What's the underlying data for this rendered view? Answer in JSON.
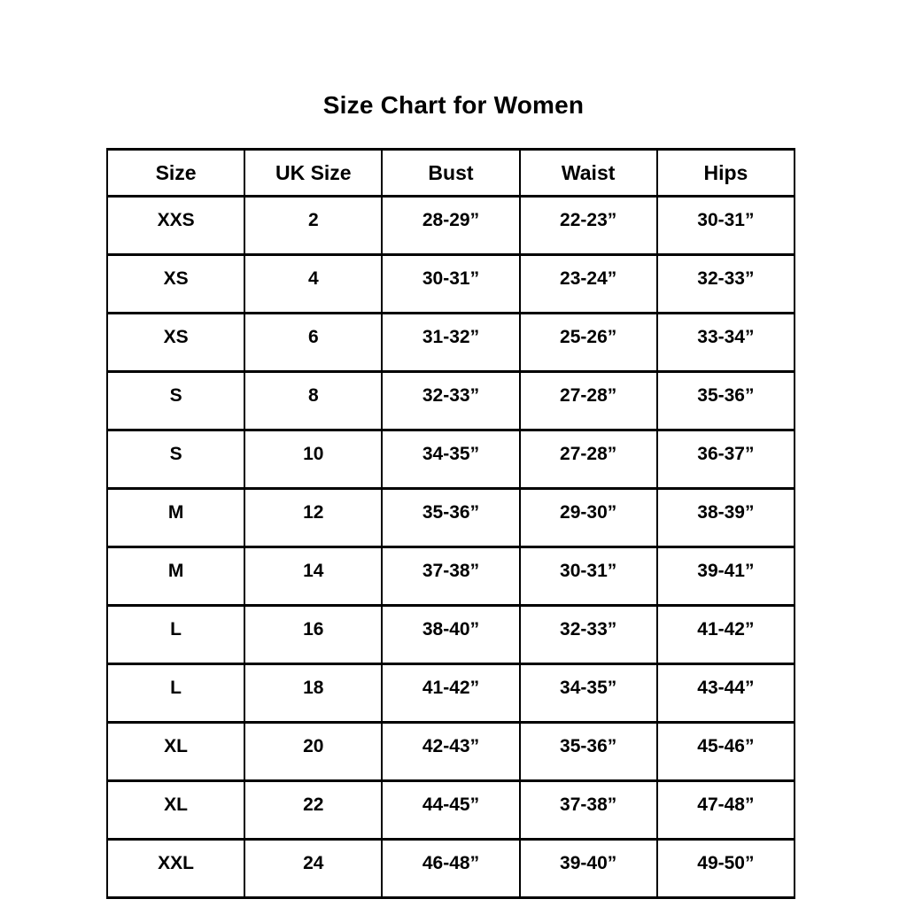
{
  "title": "Size Chart for Women",
  "colors": {
    "background": "#ffffff",
    "text": "#000000",
    "border": "#000000"
  },
  "chart_data": {
    "type": "table",
    "title": "Size Chart for Women",
    "columns": [
      "Size",
      "UK Size",
      "Bust",
      "Waist",
      "Hips"
    ],
    "rows": [
      [
        "XXS",
        "2",
        "28-29”",
        "22-23”",
        "30-31”"
      ],
      [
        "XS",
        "4",
        "30-31”",
        "23-24”",
        "32-33”"
      ],
      [
        "XS",
        "6",
        "31-32”",
        "25-26”",
        "33-34”"
      ],
      [
        "S",
        "8",
        "32-33”",
        "27-28”",
        "35-36”"
      ],
      [
        "S",
        "10",
        "34-35”",
        "27-28”",
        "36-37”"
      ],
      [
        "M",
        "12",
        "35-36”",
        "29-30”",
        "38-39”"
      ],
      [
        "M",
        "14",
        "37-38”",
        "30-31”",
        "39-41”"
      ],
      [
        "L",
        "16",
        "38-40”",
        "32-33”",
        "41-42”"
      ],
      [
        "L",
        "18",
        "41-42”",
        "34-35”",
        "43-44”"
      ],
      [
        "XL",
        "20",
        "42-43”",
        "35-36”",
        "45-46”"
      ],
      [
        "XL",
        "22",
        "44-45”",
        "37-38”",
        "47-48”"
      ],
      [
        "XXL",
        "24",
        "46-48”",
        "39-40”",
        "49-50”"
      ]
    ]
  }
}
